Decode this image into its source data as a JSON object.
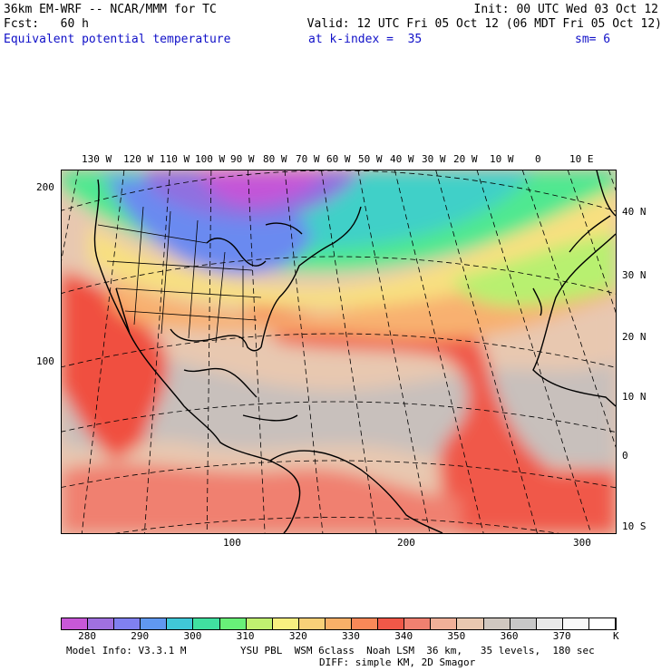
{
  "header": {
    "model_line": "36km EM-WRF -- NCAR/MMM for TC",
    "init_line": "Init: 00 UTC Wed 03 Oct 12",
    "fcst_line": "Fcst:   60 h",
    "valid_line": "Valid: 12 UTC Fri 05 Oct 12 (06 MDT Fri 05 Oct 12)",
    "field_name": "Equivalent potential temperature",
    "k_index": "at k-index =  35",
    "smoothing": "sm= 6"
  },
  "map": {
    "top_lon_labels": [
      "130 W",
      "120 W",
      "110 W",
      "100 W",
      "90 W",
      "80 W",
      "70 W",
      "60 W",
      "50 W",
      "40 W",
      "30 W",
      "20 W",
      "10 W",
      "0",
      "10 E"
    ],
    "right_lat_labels": [
      "40 N",
      "30 N",
      "20 N",
      "10 N",
      "0",
      "10 S"
    ],
    "left_axis_labels": [
      "200",
      "100"
    ],
    "bottom_axis_labels": [
      "100",
      "200",
      "300"
    ],
    "colors": {
      "cold_magenta": "#c454d8",
      "purple": "#9070e0",
      "blue": "#6a8af0",
      "teal": "#40d0c8",
      "green": "#50e890",
      "yellow_green": "#b8f070",
      "yellow": "#f8e080",
      "orange": "#f8b070",
      "red": "#f05040",
      "peach": "#f0a088",
      "tan": "#e8c8b0",
      "gray": "#c8c0bc"
    }
  },
  "legend": {
    "colors": [
      "#c858d8",
      "#a070e0",
      "#8080f0",
      "#6098f0",
      "#40c8d8",
      "#40e0a0",
      "#68f078",
      "#c0f070",
      "#f8f080",
      "#f8d078",
      "#f8b068",
      "#f88858",
      "#f05848",
      "#f08070",
      "#f0b098",
      "#e8c8b0",
      "#d0c8c0",
      "#c8c8c8",
      "#e8e8e8",
      "#f8f8f8",
      "#ffffff"
    ],
    "labels": [
      "280",
      "290",
      "300",
      "310",
      "320",
      "330",
      "340",
      "350",
      "360",
      "370"
    ],
    "unit": "K"
  },
  "footer": {
    "model_info": "Model Info: V3.3.1 M",
    "physics": "YSU PBL  WSM 6class  Noah LSM  36 km,   35 levels,  180 sec",
    "diffusion": "DIFF: simple KM, 2D Smagor"
  }
}
